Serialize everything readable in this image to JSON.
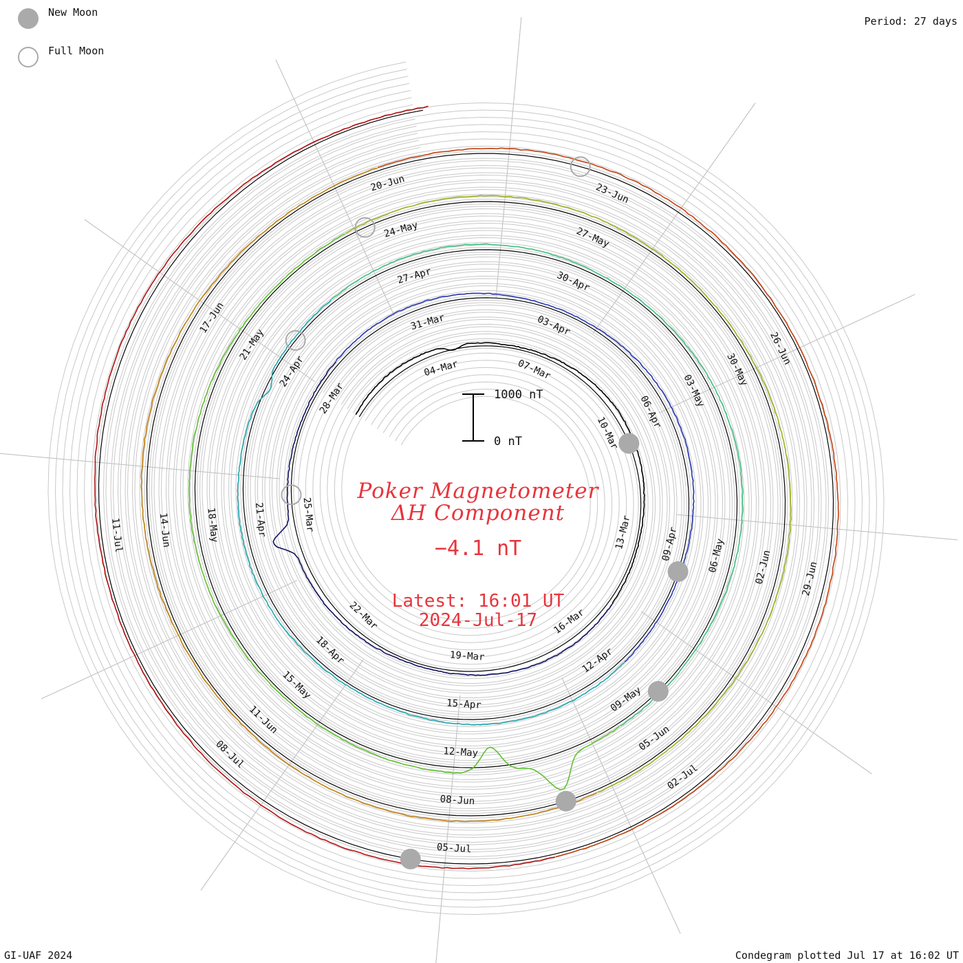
{
  "legend": {
    "new_moon": "New Moon",
    "full_moon": "Full Moon",
    "new_moon_color": "#aaaaaa",
    "full_moon_color": "#aaaaaa"
  },
  "header": {
    "period": "Period: 27 days"
  },
  "footer": {
    "credit": "GI-UAF 2024",
    "plotted": "Condegram plotted Jul 17 at 16:02 UT"
  },
  "title": {
    "line1": "Poker Magnetometer",
    "line2": "ΔH Component",
    "current_value": "−4.1 nT",
    "latest_time": "Latest: 16:01 UT",
    "latest_date": "2024-Jul-17",
    "color": "#e8343c"
  },
  "chart_data": {
    "type": "line",
    "subtype": "condegram (spiral time series)",
    "period_days": 27,
    "scale_bar": {
      "top_label": "1000 nT",
      "bottom_label": "0 nT",
      "value_nT": 1000
    },
    "grid": true,
    "date_labels": [
      "04-Mar",
      "07-Mar",
      "10-Mar",
      "13-Mar",
      "16-Mar",
      "19-Mar",
      "22-Mar",
      "25-Mar",
      "28-Mar",
      "31-Mar",
      "03-Apr",
      "06-Apr",
      "09-Apr",
      "12-Apr",
      "15-Apr",
      "18-Apr",
      "21-Apr",
      "24-Apr",
      "27-Apr",
      "30-Apr",
      "03-May",
      "06-May",
      "09-May",
      "12-May",
      "15-May",
      "18-May",
      "21-May",
      "24-May",
      "27-May",
      "30-May",
      "02-Jun",
      "05-Jun",
      "08-Jun",
      "11-Jun",
      "14-Jun",
      "17-Jun",
      "20-Jun",
      "23-Jun",
      "26-Jun",
      "29-Jun",
      "02-Jul",
      "05-Jul",
      "08-Jul",
      "11-Jul"
    ],
    "series_colors": [
      "#000000",
      "#101060",
      "#2838b0",
      "#20a8b0",
      "#40c080",
      "#60c030",
      "#a0b020",
      "#c08010",
      "#c04010",
      "#b01010"
    ],
    "new_moon_dates": [
      "10-Mar",
      "09-Apr",
      "08-May",
      "06-Jun",
      "05-Jul"
    ],
    "full_moon_dates": [
      "25-Mar",
      "24-Apr",
      "23-May",
      "22-Jun"
    ],
    "disturbances": [
      {
        "date": "04-Mar",
        "value_nT": -350
      },
      {
        "date": "24-Mar",
        "value_nT": 1400
      },
      {
        "date": "23-Apr",
        "value_nT": -500
      },
      {
        "date": "10-May",
        "value_nT": 2200
      },
      {
        "date": "11-May",
        "value_nT": -1800
      }
    ]
  }
}
